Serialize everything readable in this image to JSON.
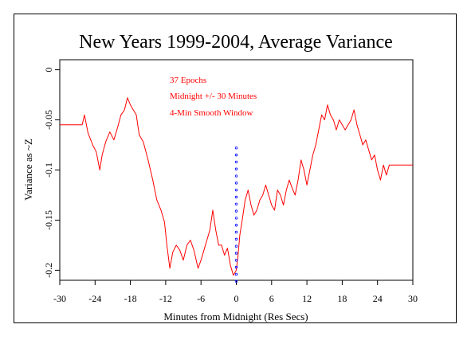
{
  "chart_data": {
    "type": "line",
    "title": "New Years 1999-2004, Average Variance",
    "xlabel": "Minutes from Midnight (Res Secs)",
    "ylabel": "Variance as ~Z",
    "xlim": [
      -30,
      30
    ],
    "ylim": [
      -0.21,
      0.01
    ],
    "xticks": [
      -30,
      -24,
      -18,
      -12,
      -6,
      0,
      6,
      12,
      18,
      24,
      30
    ],
    "xtick_labels": [
      "-30",
      "-24",
      "-18",
      "-12",
      "-6",
      "0",
      "6",
      "12",
      "18",
      "24",
      "30"
    ],
    "yticks": [
      0,
      -0.05,
      -0.1,
      -0.15,
      -0.2
    ],
    "ytick_labels": [
      "0",
      "-0.05",
      "-0.1",
      "-0.15",
      "-0.2"
    ],
    "annotations": [
      "37 Epochs",
      "Midnight +/- 30 Minutes",
      "4-Min Smooth Window"
    ],
    "series": [
      {
        "color": "#ff0000",
        "points": [
          [
            -30,
            -0.055
          ],
          [
            -26.2,
            -0.055
          ],
          [
            -25.8,
            -0.045
          ],
          [
            -25.2,
            -0.063
          ],
          [
            -24.4,
            -0.075
          ],
          [
            -23.8,
            -0.082
          ],
          [
            -23.2,
            -0.1
          ],
          [
            -22.8,
            -0.085
          ],
          [
            -22.2,
            -0.072
          ],
          [
            -21.5,
            -0.062
          ],
          [
            -20.8,
            -0.07
          ],
          [
            -20.2,
            -0.058
          ],
          [
            -19.6,
            -0.045
          ],
          [
            -19.0,
            -0.04
          ],
          [
            -18.5,
            -0.028
          ],
          [
            -18.0,
            -0.035
          ],
          [
            -17.5,
            -0.04
          ],
          [
            -17.0,
            -0.045
          ],
          [
            -16.5,
            -0.065
          ],
          [
            -15.8,
            -0.072
          ],
          [
            -15.0,
            -0.09
          ],
          [
            -14.2,
            -0.11
          ],
          [
            -13.5,
            -0.13
          ],
          [
            -12.8,
            -0.14
          ],
          [
            -12.2,
            -0.152
          ],
          [
            -11.8,
            -0.175
          ],
          [
            -11.3,
            -0.198
          ],
          [
            -10.8,
            -0.182
          ],
          [
            -10.2,
            -0.175
          ],
          [
            -9.6,
            -0.18
          ],
          [
            -9.0,
            -0.19
          ],
          [
            -8.4,
            -0.175
          ],
          [
            -7.8,
            -0.17
          ],
          [
            -7.2,
            -0.18
          ],
          [
            -6.5,
            -0.198
          ],
          [
            -6.0,
            -0.19
          ],
          [
            -5.5,
            -0.18
          ],
          [
            -5.0,
            -0.17
          ],
          [
            -4.5,
            -0.16
          ],
          [
            -4.0,
            -0.14
          ],
          [
            -3.5,
            -0.16
          ],
          [
            -3.0,
            -0.175
          ],
          [
            -2.5,
            -0.175
          ],
          [
            -2.0,
            -0.185
          ],
          [
            -1.5,
            -0.178
          ],
          [
            -1.0,
            -0.195
          ],
          [
            -0.5,
            -0.205
          ],
          [
            0.0,
            -0.2
          ],
          [
            0.3,
            -0.185
          ],
          [
            0.6,
            -0.165
          ],
          [
            1.0,
            -0.15
          ],
          [
            1.5,
            -0.13
          ],
          [
            2.0,
            -0.12
          ],
          [
            2.5,
            -0.135
          ],
          [
            3.0,
            -0.145
          ],
          [
            3.5,
            -0.14
          ],
          [
            4.0,
            -0.13
          ],
          [
            4.5,
            -0.125
          ],
          [
            5.0,
            -0.115
          ],
          [
            5.5,
            -0.125
          ],
          [
            6.0,
            -0.135
          ],
          [
            6.5,
            -0.14
          ],
          [
            7.0,
            -0.12
          ],
          [
            7.5,
            -0.125
          ],
          [
            8.0,
            -0.135
          ],
          [
            8.5,
            -0.12
          ],
          [
            9.0,
            -0.11
          ],
          [
            9.5,
            -0.118
          ],
          [
            10.0,
            -0.125
          ],
          [
            10.5,
            -0.11
          ],
          [
            11.0,
            -0.09
          ],
          [
            11.5,
            -0.1
          ],
          [
            12.0,
            -0.115
          ],
          [
            12.5,
            -0.1
          ],
          [
            13.0,
            -0.085
          ],
          [
            13.5,
            -0.075
          ],
          [
            14.0,
            -0.06
          ],
          [
            14.5,
            -0.045
          ],
          [
            15.0,
            -0.05
          ],
          [
            15.5,
            -0.035
          ],
          [
            16.0,
            -0.045
          ],
          [
            16.5,
            -0.05
          ],
          [
            17.0,
            -0.06
          ],
          [
            17.5,
            -0.05
          ],
          [
            18.0,
            -0.055
          ],
          [
            18.5,
            -0.06
          ],
          [
            19.0,
            -0.055
          ],
          [
            19.5,
            -0.05
          ],
          [
            20.0,
            -0.04
          ],
          [
            20.5,
            -0.055
          ],
          [
            21.0,
            -0.065
          ],
          [
            21.5,
            -0.075
          ],
          [
            22.0,
            -0.07
          ],
          [
            22.5,
            -0.08
          ],
          [
            23.0,
            -0.09
          ],
          [
            23.5,
            -0.085
          ],
          [
            24.0,
            -0.1
          ],
          [
            24.5,
            -0.11
          ],
          [
            25.0,
            -0.095
          ],
          [
            25.5,
            -0.105
          ],
          [
            26.0,
            -0.095
          ],
          [
            30,
            -0.095
          ]
        ]
      },
      {
        "color": "#0000ff",
        "marker": "dots",
        "points": [
          [
            0,
            -0.078
          ],
          [
            0,
            -0.085
          ],
          [
            0,
            -0.092
          ],
          [
            0,
            -0.099
          ],
          [
            0,
            -0.106
          ],
          [
            0,
            -0.113
          ],
          [
            0,
            -0.12
          ],
          [
            0,
            -0.127
          ],
          [
            0,
            -0.134
          ],
          [
            0,
            -0.141
          ],
          [
            0,
            -0.148
          ],
          [
            0,
            -0.155
          ],
          [
            0,
            -0.162
          ],
          [
            0,
            -0.169
          ],
          [
            0,
            -0.176
          ],
          [
            0,
            -0.183
          ],
          [
            0,
            -0.19
          ],
          [
            0,
            -0.197
          ],
          [
            0,
            -0.204
          ],
          [
            0,
            -0.211
          ]
        ]
      }
    ]
  }
}
